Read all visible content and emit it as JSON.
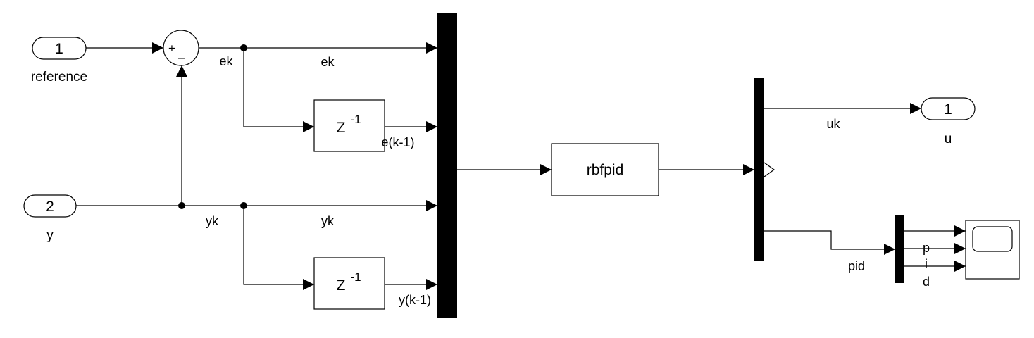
{
  "diagram": {
    "inports": [
      {
        "number": "1",
        "name": "reference"
      },
      {
        "number": "2",
        "name": "y"
      }
    ],
    "outport": {
      "number": "1",
      "name": "u"
    },
    "sum_signs": {
      "plus": "+",
      "minus": "_"
    },
    "delay_blocks": [
      {
        "label": "Z",
        "exponent": "-1"
      },
      {
        "label": "Z",
        "exponent": "-1"
      }
    ],
    "controller": {
      "name": "rbfpid"
    },
    "signals": {
      "ek_branch": "ek",
      "ek_line": "ek",
      "e_prev": "e(k-1)",
      "yk_branch": "yk",
      "yk_line": "yk",
      "y_prev": "y(k-1)",
      "uk": "uk",
      "pid": "pid",
      "p": "p",
      "i": "i",
      "d": "d"
    }
  }
}
